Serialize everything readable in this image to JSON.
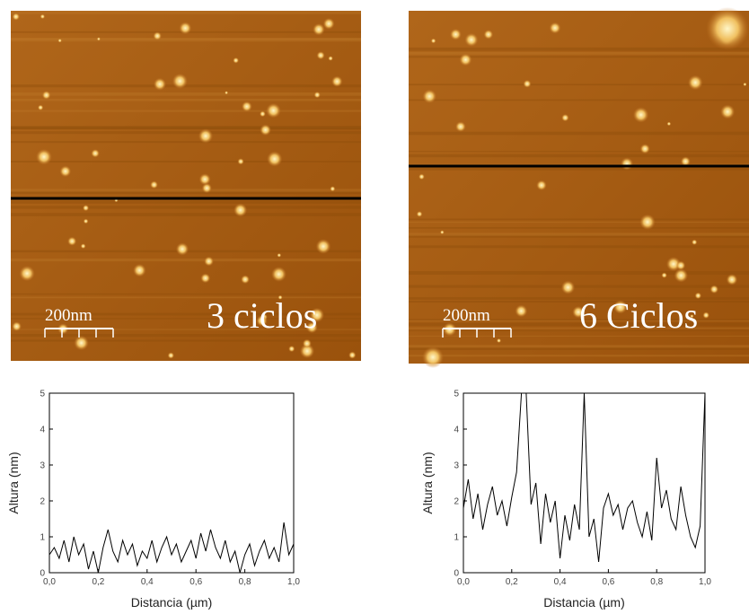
{
  "images": [
    {
      "scale_label": "200nm",
      "label": "3 ciclos"
    },
    {
      "scale_label": "200nm",
      "label": "6 Ciclos"
    }
  ],
  "chart_data": [
    {
      "type": "line",
      "x_label": "Distancia (µm)",
      "y_label": "Altura (nm)",
      "x": [
        0,
        0.02,
        0.04,
        0.06,
        0.08,
        0.1,
        0.12,
        0.14,
        0.16,
        0.18,
        0.2,
        0.22,
        0.24,
        0.26,
        0.28,
        0.3,
        0.32,
        0.34,
        0.36,
        0.38,
        0.4,
        0.42,
        0.44,
        0.46,
        0.48,
        0.5,
        0.52,
        0.54,
        0.56,
        0.58,
        0.6,
        0.62,
        0.64,
        0.66,
        0.68,
        0.7,
        0.72,
        0.74,
        0.76,
        0.78,
        0.8,
        0.82,
        0.84,
        0.86,
        0.88,
        0.9,
        0.92,
        0.94,
        0.96,
        0.98,
        1.0
      ],
      "series": [
        {
          "color": "#000000",
          "values": [
            0.5,
            0.7,
            0.4,
            0.9,
            0.3,
            1.0,
            0.5,
            0.8,
            0.1,
            0.6,
            0.0,
            0.7,
            1.2,
            0.6,
            0.3,
            0.9,
            0.5,
            0.8,
            0.2,
            0.6,
            0.4,
            0.9,
            0.3,
            0.7,
            1.0,
            0.5,
            0.8,
            0.3,
            0.6,
            0.9,
            0.4,
            1.1,
            0.6,
            1.2,
            0.7,
            0.4,
            0.9,
            0.3,
            0.6,
            0.0,
            0.5,
            0.8,
            0.2,
            0.6,
            0.9,
            0.4,
            0.7,
            0.3,
            1.4,
            0.5,
            0.8
          ]
        }
      ],
      "xlim": [
        0,
        1.0
      ],
      "ylim": [
        0,
        5
      ],
      "xticks": [
        {
          "value": 0,
          "label": "0,0"
        },
        {
          "value": 0.2,
          "label": "0,2"
        },
        {
          "value": 0.4,
          "label": "0,4"
        },
        {
          "value": 0.6,
          "label": "0,6"
        },
        {
          "value": 0.8,
          "label": "0,8"
        },
        {
          "value": 1.0,
          "label": "1,0"
        }
      ],
      "yticks": [
        0,
        1,
        2,
        3,
        4,
        5
      ]
    },
    {
      "type": "line",
      "x_label": "Distancia (µm)",
      "y_label": "Altura (nm)",
      "x": [
        0,
        0.02,
        0.04,
        0.06,
        0.08,
        0.1,
        0.12,
        0.14,
        0.16,
        0.18,
        0.2,
        0.22,
        0.24,
        0.26,
        0.28,
        0.3,
        0.32,
        0.34,
        0.36,
        0.38,
        0.4,
        0.42,
        0.44,
        0.46,
        0.48,
        0.5,
        0.52,
        0.54,
        0.56,
        0.58,
        0.6,
        0.62,
        0.64,
        0.66,
        0.68,
        0.7,
        0.72,
        0.74,
        0.76,
        0.78,
        0.8,
        0.82,
        0.84,
        0.86,
        0.88,
        0.9,
        0.92,
        0.94,
        0.96,
        0.98,
        1.0
      ],
      "series": [
        {
          "color": "#000000",
          "values": [
            1.8,
            2.6,
            1.5,
            2.2,
            1.2,
            1.9,
            2.4,
            1.6,
            2.0,
            1.3,
            2.1,
            2.8,
            5,
            5,
            1.9,
            2.5,
            0.8,
            2.2,
            1.4,
            2.0,
            0.4,
            1.6,
            0.9,
            1.9,
            1.2,
            5,
            1.0,
            1.5,
            0.3,
            1.8,
            2.2,
            1.6,
            1.9,
            1.2,
            1.8,
            2.0,
            1.4,
            1.0,
            1.7,
            0.9,
            3.2,
            1.8,
            2.3,
            1.5,
            1.2,
            2.4,
            1.6,
            1.0,
            0.7,
            1.3,
            5
          ]
        }
      ],
      "xlim": [
        0,
        1.0
      ],
      "ylim": [
        0,
        5
      ],
      "xticks": [
        {
          "value": 0,
          "label": "0,0"
        },
        {
          "value": 0.2,
          "label": "0,2"
        },
        {
          "value": 0.4,
          "label": "0,4"
        },
        {
          "value": 0.6,
          "label": "0,6"
        },
        {
          "value": 0.8,
          "label": "0,8"
        },
        {
          "value": 1.0,
          "label": "1,0"
        }
      ],
      "yticks": [
        0,
        1,
        2,
        3,
        4,
        5
      ]
    }
  ]
}
